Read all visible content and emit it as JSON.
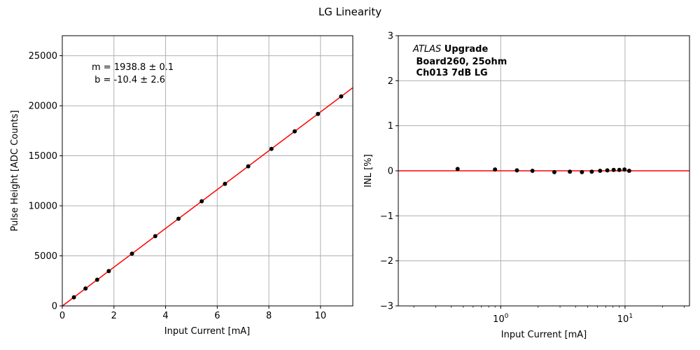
{
  "figure": {
    "suptitle": "LG Linearity"
  },
  "chart_data": [
    {
      "type": "scatter",
      "xlabel": "Input Current [mA]",
      "ylabel": "Pulse Height [ADC Counts]",
      "xlim": [
        0,
        11.25
      ],
      "ylim": [
        0,
        27000
      ],
      "xticks": [
        0,
        2,
        4,
        6,
        8,
        10
      ],
      "xtick_labels": [
        "0",
        "2",
        "4",
        "6",
        "8",
        "10"
      ],
      "yticks": [
        0,
        5000,
        10000,
        15000,
        20000,
        25000
      ],
      "ytick_labels": [
        "0",
        "5000",
        "10000",
        "15000",
        "20000",
        "25000"
      ],
      "grid": true,
      "annotation": [
        "m = 1938.8 ± 0.1",
        " b = -10.4 ± 2.6"
      ],
      "points": {
        "x": [
          0.45,
          0.9,
          1.35,
          1.8,
          2.7,
          3.6,
          4.5,
          5.4,
          6.3,
          7.2,
          8.1,
          9.0,
          9.9,
          10.8
        ],
        "y": [
          860,
          1740,
          2610,
          3480,
          5220,
          6970,
          8710,
          10460,
          12200,
          13950,
          15690,
          17440,
          19180,
          20930
        ]
      },
      "fit": {
        "slope": 1938.8,
        "intercept": -10.4,
        "color": "#ff0000"
      },
      "marker_color": "#000000"
    },
    {
      "type": "scatter",
      "xlabel": "Input Current [mA]",
      "ylabel": "INL [%]",
      "xscale": "log",
      "xlim": [
        0.15,
        33
      ],
      "ylim": [
        -3,
        3
      ],
      "xticks": [
        1,
        10
      ],
      "yticks": [
        -3,
        -2,
        -1,
        0,
        1,
        2,
        3
      ],
      "ytick_labels": [
        "−3",
        "−2",
        "−1",
        "0",
        "1",
        "2",
        "3"
      ],
      "grid": true,
      "annotation": {
        "line1_italic": "ATLAS",
        "line1_bold": " Upgrade",
        "line2": " Board260, 25ohm",
        "line3": " Ch013 7dB LG"
      },
      "points": {
        "x": [
          0.45,
          0.9,
          1.35,
          1.8,
          2.7,
          3.6,
          4.5,
          5.4,
          6.3,
          7.2,
          8.1,
          9.0,
          9.9,
          10.8
        ],
        "y": [
          0.04,
          0.03,
          0.01,
          0.0,
          -0.03,
          -0.02,
          -0.03,
          -0.02,
          0.0,
          0.01,
          0.02,
          0.02,
          0.03,
          0.0
        ]
      },
      "reference_line": {
        "y": 0,
        "color": "#ff0000"
      },
      "marker_color": "#000000"
    }
  ]
}
